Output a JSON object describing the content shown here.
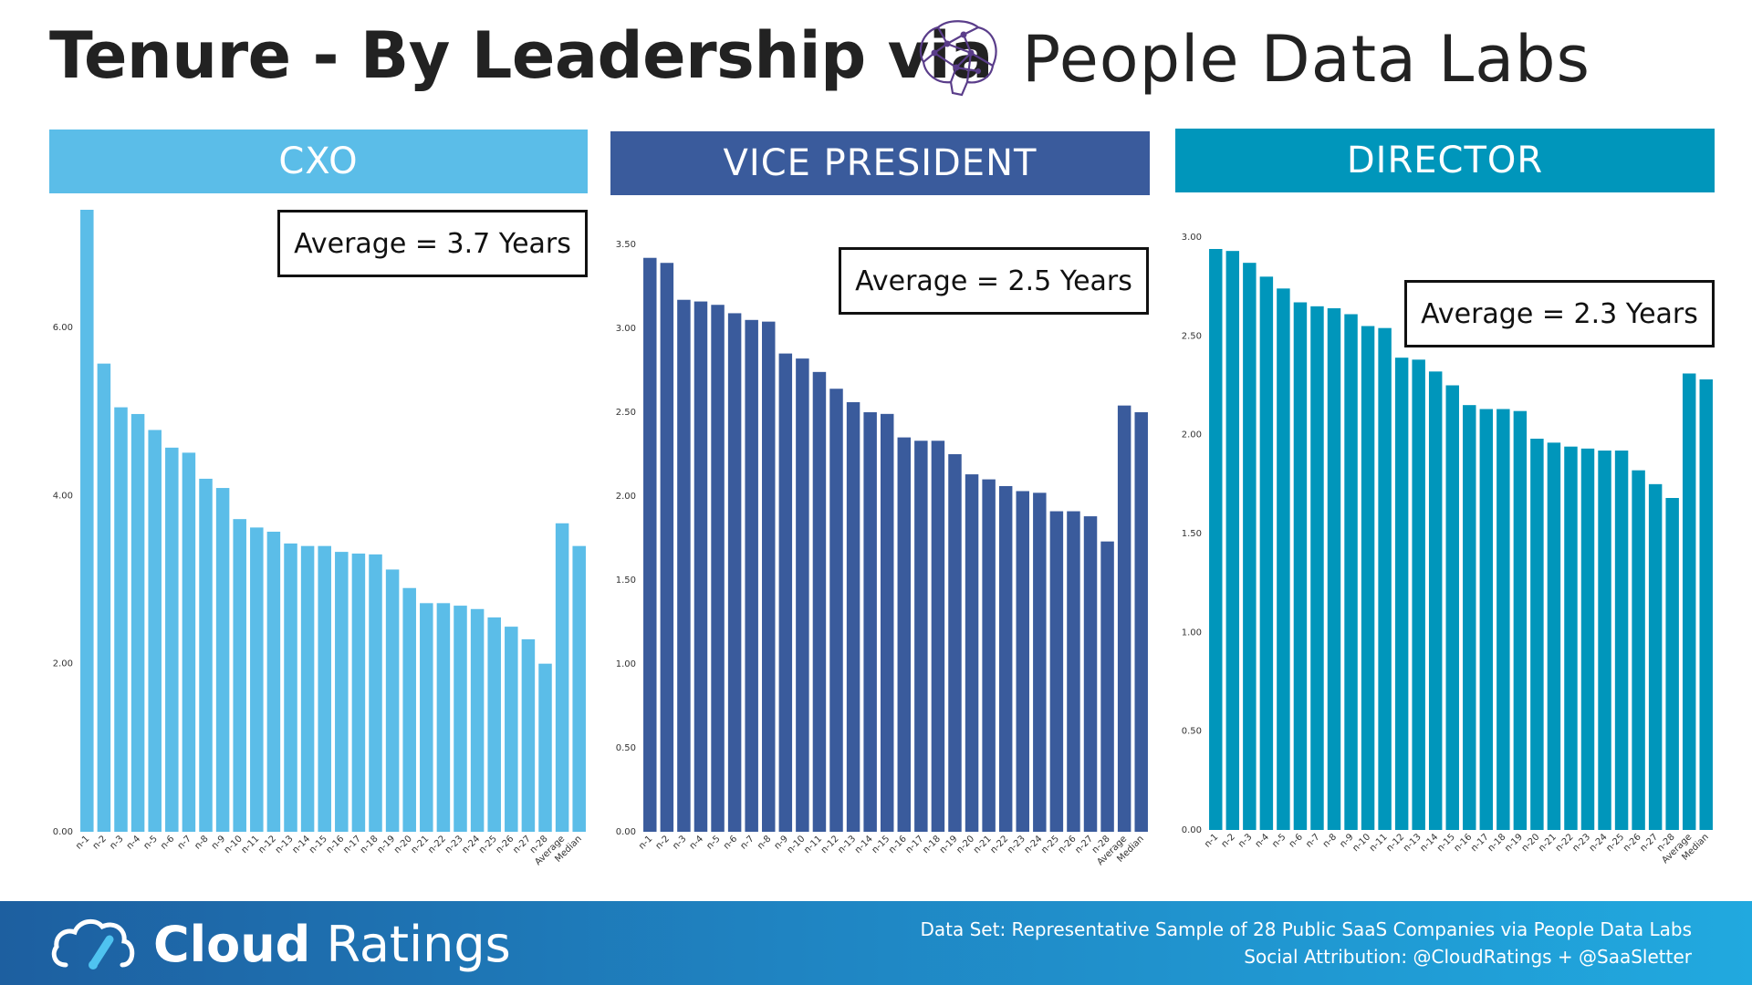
{
  "title": "Tenure - By Leadership via",
  "brand": {
    "name": "People Data Labs",
    "logo_icon": "brain-network-icon"
  },
  "colors": {
    "cxo": "#5bbde8",
    "vp": "#3a5b9c",
    "director": "#0096bb",
    "title": "#222222"
  },
  "chart_data": [
    {
      "type": "bar",
      "title": "CXO",
      "annotation": "Average = 3.7 Years",
      "categories": [
        "n-1",
        "n-2",
        "n-3",
        "n-4",
        "n-5",
        "n-6",
        "n-7",
        "n-8",
        "n-9",
        "n-10",
        "n-11",
        "n-12",
        "n-13",
        "n-14",
        "n-15",
        "n-16",
        "n-17",
        "n-18",
        "n-19",
        "n-20",
        "n-21",
        "n-22",
        "n-23",
        "n-24",
        "n-25",
        "n-26",
        "n-27",
        "n-28",
        "Average",
        "Median"
      ],
      "values": [
        7.4,
        5.57,
        5.05,
        4.97,
        4.78,
        4.57,
        4.51,
        4.2,
        4.09,
        3.72,
        3.62,
        3.57,
        3.43,
        3.4,
        3.4,
        3.33,
        3.31,
        3.3,
        3.12,
        2.9,
        2.72,
        2.72,
        2.69,
        2.65,
        2.55,
        2.44,
        2.29,
        2.0,
        3.67,
        3.4
      ],
      "yticks": [
        "0.00",
        "2.00",
        "4.00",
        "6.00"
      ],
      "ylim": [
        0,
        7.4
      ],
      "xlabel": "",
      "ylabel": ""
    },
    {
      "type": "bar",
      "title": "VICE PRESIDENT",
      "annotation": "Average = 2.5 Years",
      "categories": [
        "n-1",
        "n-2",
        "n-3",
        "n-4",
        "n-5",
        "n-6",
        "n-7",
        "n-8",
        "n-9",
        "n-10",
        "n-11",
        "n-12",
        "n-13",
        "n-14",
        "n-15",
        "n-16",
        "n-17",
        "n-18",
        "n-19",
        "n-20",
        "n-21",
        "n-22",
        "n-23",
        "n-24",
        "n-25",
        "n-26",
        "n-27",
        "n-28",
        "Average",
        "Median"
      ],
      "values": [
        3.42,
        3.39,
        3.17,
        3.16,
        3.14,
        3.09,
        3.05,
        3.04,
        2.85,
        2.82,
        2.74,
        2.64,
        2.56,
        2.5,
        2.49,
        2.35,
        2.33,
        2.33,
        2.25,
        2.13,
        2.1,
        2.06,
        2.03,
        2.02,
        1.91,
        1.91,
        1.88,
        1.73,
        2.54,
        2.5
      ],
      "yticks": [
        "0.00",
        "0.50",
        "1.00",
        "1.50",
        "2.00",
        "2.50",
        "3.00",
        "3.50"
      ],
      "ylim": [
        0,
        3.5
      ],
      "xlabel": "",
      "ylabel": ""
    },
    {
      "type": "bar",
      "title": "DIRECTOR",
      "annotation": "Average = 2.3 Years",
      "categories": [
        "n-1",
        "n-2",
        "n-3",
        "n-4",
        "n-5",
        "n-6",
        "n-7",
        "n-8",
        "n-9",
        "n-10",
        "n-11",
        "n-12",
        "n-13",
        "n-14",
        "n-15",
        "n-16",
        "n-17",
        "n-18",
        "n-19",
        "n-20",
        "n-21",
        "n-22",
        "n-23",
        "n-24",
        "n-25",
        "n-26",
        "n-27",
        "n-28",
        "Average",
        "Median"
      ],
      "values": [
        2.94,
        2.93,
        2.87,
        2.8,
        2.74,
        2.67,
        2.65,
        2.64,
        2.61,
        2.55,
        2.54,
        2.39,
        2.38,
        2.32,
        2.25,
        2.15,
        2.13,
        2.13,
        2.12,
        1.98,
        1.96,
        1.94,
        1.93,
        1.92,
        1.92,
        1.82,
        1.75,
        1.68,
        2.31,
        2.28
      ],
      "yticks": [
        "0.00",
        "0.50",
        "1.00",
        "1.50",
        "2.00",
        "2.50",
        "3.00"
      ],
      "ylim": [
        0,
        3.0
      ],
      "xlabel": "",
      "ylabel": ""
    }
  ],
  "footer": {
    "brand_bold": "Cloud",
    "brand_rest": " Ratings",
    "brand_icon": "cloud-gauge-icon",
    "note_line1": "Data Set: Representative Sample of 28 Public SaaS Companies via People Data Labs",
    "note_line2": "Social Attribution: @CloudRatings + @SaaSletter"
  }
}
